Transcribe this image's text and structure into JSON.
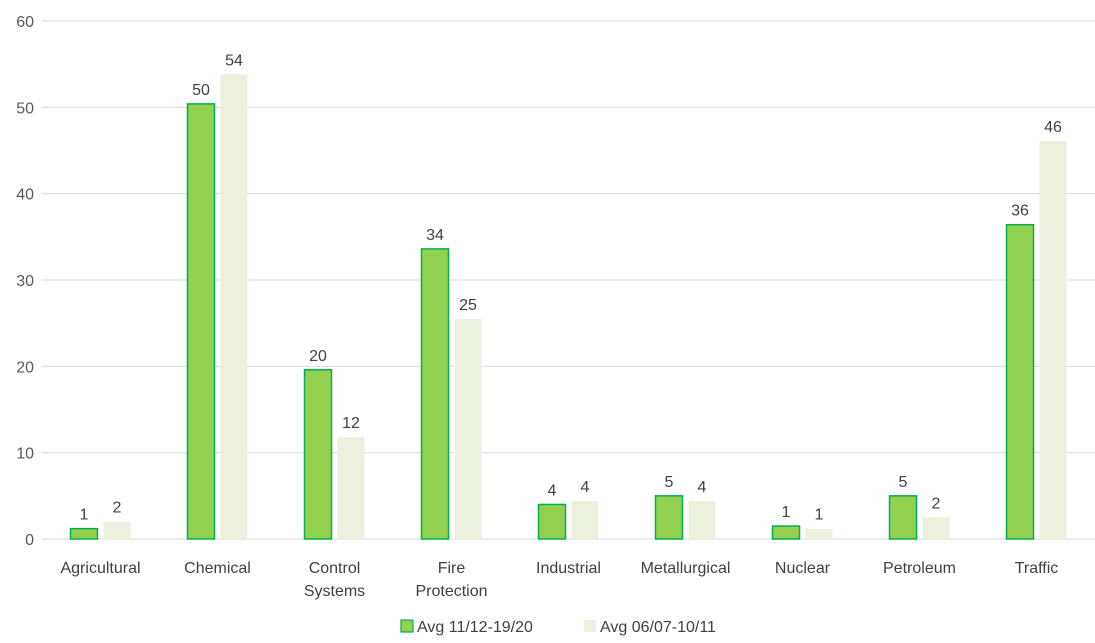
{
  "chart_data": {
    "type": "bar",
    "title": "",
    "xlabel": "",
    "ylabel": "",
    "ylim": [
      0,
      60
    ],
    "yticks": [
      0,
      10,
      20,
      30,
      40,
      50,
      60
    ],
    "grid": true,
    "legend_position": "bottom",
    "categories": [
      [
        "Agricultural"
      ],
      [
        "Chemical"
      ],
      [
        "Control",
        "Systems"
      ],
      [
        "Fire",
        "Protection"
      ],
      [
        "Industrial"
      ],
      [
        "Metallurgical"
      ],
      [
        "Nuclear"
      ],
      [
        "Petroleum"
      ],
      [
        "Traffic"
      ]
    ],
    "series": [
      {
        "name": "Avg 11/12-19/20",
        "color": "#92d050",
        "stroke": "#00b050",
        "values": [
          1.2,
          50.4,
          19.6,
          33.6,
          4.0,
          5.0,
          1.5,
          5.0,
          36.4
        ],
        "labels": [
          "1",
          "50",
          "20",
          "34",
          "4",
          "5",
          "1",
          "5",
          "36"
        ]
      },
      {
        "name": "Avg 06/07-10/11",
        "color": "#ebf1de",
        "stroke": "none",
        "values": [
          2.0,
          53.8,
          11.8,
          25.5,
          4.4,
          4.4,
          1.2,
          2.5,
          46.1
        ],
        "labels": [
          "2",
          "54",
          "12",
          "25",
          "4",
          "4",
          "1",
          "2",
          "46"
        ]
      }
    ]
  }
}
